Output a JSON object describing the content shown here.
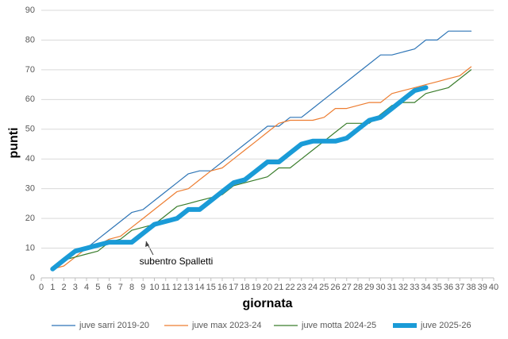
{
  "chart_data": {
    "type": "line",
    "x_label": "giornata",
    "y_label": "punti",
    "x": [
      1,
      2,
      3,
      4,
      5,
      6,
      7,
      8,
      9,
      10,
      11,
      12,
      13,
      14,
      15,
      16,
      17,
      18,
      19,
      20,
      21,
      22,
      23,
      24,
      25,
      26,
      27,
      28,
      29,
      30,
      31,
      32,
      33,
      34,
      35,
      36,
      37,
      38
    ],
    "series": [
      {
        "name": "juve sarri 2019-20",
        "color": "#2e75b6",
        "width": 1.2,
        "values": [
          3,
          6,
          9,
          10,
          13,
          16,
          19,
          22,
          23,
          26,
          29,
          32,
          35,
          36,
          36,
          39,
          42,
          45,
          48,
          51,
          51,
          54,
          54,
          57,
          60,
          63,
          66,
          69,
          72,
          75,
          75,
          76,
          77,
          80,
          80,
          83,
          83,
          83
        ]
      },
      {
        "name": "juve max 2023-24",
        "color": "#ed7d31",
        "width": 1.2,
        "values": [
          3,
          4,
          7,
          10,
          11,
          13,
          14,
          17,
          20,
          23,
          26,
          29,
          30,
          33,
          36,
          37,
          40,
          43,
          46,
          49,
          52,
          53,
          53,
          53,
          54,
          57,
          57,
          58,
          59,
          59,
          62,
          63,
          64,
          65,
          66,
          67,
          68,
          71
        ]
      },
      {
        "name": "juve motta 2024-25",
        "color": "#3a7d2c",
        "width": 1.2,
        "values": [
          3,
          6,
          7,
          8,
          9,
          12,
          13,
          16,
          17,
          18,
          21,
          24,
          25,
          26,
          27,
          28,
          31,
          32,
          33,
          34,
          37,
          37,
          40,
          43,
          46,
          49,
          52,
          52,
          52,
          55,
          58,
          59,
          59,
          62,
          63,
          64,
          67,
          70
        ]
      },
      {
        "name": "juve 2025-26",
        "color": "#1a9bd7",
        "width": 6,
        "values": [
          3,
          6,
          9,
          10,
          11,
          12,
          12,
          12,
          15,
          18,
          19,
          20,
          23,
          23,
          26,
          29,
          32,
          33,
          36,
          39,
          39,
          42,
          45,
          46,
          46,
          46,
          47,
          50,
          53,
          54,
          57,
          60,
          63,
          64,
          null,
          null,
          null,
          null
        ]
      }
    ],
    "xlim": [
      0,
      40
    ],
    "xticks": [
      0,
      1,
      2,
      3,
      4,
      5,
      6,
      7,
      8,
      9,
      10,
      11,
      12,
      13,
      14,
      15,
      16,
      17,
      18,
      19,
      20,
      21,
      22,
      23,
      24,
      25,
      26,
      27,
      28,
      29,
      30,
      31,
      32,
      33,
      34,
      35,
      36,
      37,
      38,
      39,
      40
    ],
    "ylim": [
      0,
      90
    ],
    "yticks": [
      0,
      10,
      20,
      30,
      40,
      50,
      60,
      70,
      80,
      90
    ],
    "grid": true,
    "legend": "bottom",
    "annotation": {
      "text": "subentro Spalletti",
      "x": 9.5,
      "y": 15
    }
  }
}
